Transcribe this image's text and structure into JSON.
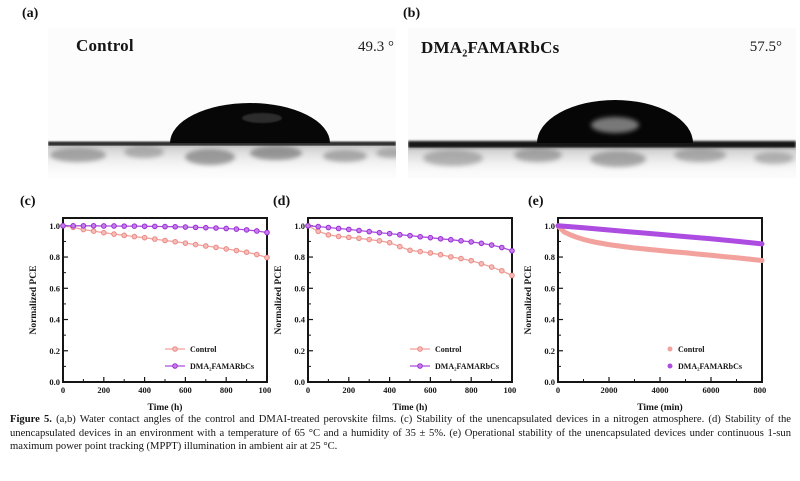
{
  "panels": {
    "a": {
      "label": "(a)",
      "title": "Control",
      "angle": "49.3 °"
    },
    "b": {
      "label": "(b)",
      "title": "DMA₂FAMARbCs",
      "angle": "57.5°"
    }
  },
  "colors": {
    "control_line": "#F2A19D",
    "control_marker_fill": "#F7BDB9",
    "control_marker_edge": "#EA8984",
    "treated_line": "#AC4CE0",
    "treated_marker_fill": "#C47EEB",
    "treated_marker_edge": "#9A2DD4",
    "axis": "#151515"
  },
  "chart_data": [
    {
      "id": "c",
      "label": "(c)",
      "type": "line",
      "title": "",
      "xlabel": "Time (h)",
      "ylabel": "Normalized PCE",
      "xlim": [
        0,
        1000
      ],
      "ylim": [
        0,
        1.05
      ],
      "xticks": [
        0,
        200,
        400,
        600,
        800,
        1000
      ],
      "yticks": [
        "0.0",
        "0.2",
        "0.4",
        "0.6",
        "0.8",
        "1.0"
      ],
      "grid": false,
      "legend_position": "lower right",
      "legend_style": "line-marker",
      "markers": true,
      "line_width": 1.3,
      "x": [
        0,
        50,
        100,
        150,
        200,
        250,
        300,
        350,
        400,
        450,
        500,
        550,
        600,
        650,
        700,
        750,
        800,
        850,
        900,
        950,
        1000
      ],
      "series": [
        {
          "name": "Control",
          "role": "control",
          "y": [
            1.0,
            0.99,
            0.976,
            0.966,
            0.956,
            0.947,
            0.939,
            0.931,
            0.924,
            0.915,
            0.906,
            0.898,
            0.889,
            0.88,
            0.871,
            0.862,
            0.852,
            0.842,
            0.831,
            0.816,
            0.797
          ]
        },
        {
          "name": "DMA₂FAMARbCs",
          "role": "treated",
          "y": [
            1.0,
            1.0,
            1.0,
            1.0,
            0.999,
            0.999,
            0.998,
            0.998,
            0.997,
            0.996,
            0.995,
            0.994,
            0.992,
            0.99,
            0.988,
            0.986,
            0.983,
            0.979,
            0.974,
            0.967,
            0.957
          ]
        }
      ]
    },
    {
      "id": "d",
      "label": "(d)",
      "type": "line",
      "title": "",
      "xlabel": "Time (h)",
      "ylabel": "Normalized PCE",
      "xlim": [
        0,
        1000
      ],
      "ylim": [
        0,
        1.05
      ],
      "xticks": [
        0,
        200,
        400,
        600,
        800,
        1000
      ],
      "yticks": [
        "0.0",
        "0.2",
        "0.4",
        "0.6",
        "0.8",
        "1.0"
      ],
      "grid": false,
      "legend_position": "lower right",
      "legend_style": "line-marker",
      "markers": true,
      "line_width": 1.3,
      "x": [
        0,
        50,
        100,
        150,
        200,
        250,
        300,
        350,
        400,
        450,
        500,
        550,
        600,
        650,
        700,
        750,
        800,
        850,
        900,
        950,
        1000
      ],
      "series": [
        {
          "name": "Control",
          "role": "control",
          "y": [
            1.0,
            0.965,
            0.942,
            0.932,
            0.926,
            0.92,
            0.912,
            0.904,
            0.892,
            0.867,
            0.843,
            0.835,
            0.826,
            0.815,
            0.801,
            0.79,
            0.777,
            0.757,
            0.736,
            0.712,
            0.682
          ]
        },
        {
          "name": "DMA₂FAMARbCs",
          "role": "treated",
          "y": [
            1.0,
            0.995,
            0.989,
            0.983,
            0.977,
            0.97,
            0.963,
            0.956,
            0.95,
            0.943,
            0.937,
            0.93,
            0.924,
            0.917,
            0.911,
            0.904,
            0.897,
            0.888,
            0.877,
            0.861,
            0.84
          ]
        }
      ]
    },
    {
      "id": "e",
      "label": "(e)",
      "type": "line",
      "title": "",
      "xlabel": "Time (min)",
      "ylabel": "Normalized PCE",
      "xlim": [
        0,
        8000
      ],
      "ylim": [
        0,
        1.05
      ],
      "xticks": [
        0,
        2000,
        4000,
        6000,
        8000
      ],
      "yticks": [
        "0.0",
        "0.2",
        "0.4",
        "0.6",
        "0.8",
        "1.0"
      ],
      "grid": false,
      "legend_position": "lower right",
      "legend_style": "dot",
      "markers": false,
      "line_width": 5,
      "series": [
        {
          "name": "Control",
          "role": "control",
          "x": [
            0,
            250,
            500,
            750,
            1000,
            1250,
            1500,
            1750,
            2000,
            2500,
            3000,
            3500,
            4000,
            4500,
            5000,
            5500,
            6000,
            6500,
            7000,
            7500,
            8000
          ],
          "y": [
            1.0,
            0.96,
            0.941,
            0.926,
            0.913,
            0.903,
            0.894,
            0.887,
            0.88,
            0.868,
            0.858,
            0.85,
            0.842,
            0.834,
            0.827,
            0.819,
            0.811,
            0.803,
            0.795,
            0.787,
            0.778
          ]
        },
        {
          "name": "DMA₂FAMARbCs",
          "role": "treated",
          "x": [
            0,
            1000,
            2000,
            3000,
            4000,
            5000,
            6000,
            7000,
            8000
          ],
          "y": [
            1.0,
            0.987,
            0.973,
            0.959,
            0.945,
            0.931,
            0.917,
            0.901,
            0.884
          ]
        }
      ]
    }
  ],
  "caption": {
    "label": "Figure 5.",
    "text": "(a,b) Water contact angles of the control and DMAI-treated perovskite films. (c) Stability of the unencapsulated devices in a nitrogen atmosphere. (d) Stability of the unencapsulated devices in an environment with a temperature of 65 °C and a humidity of 35 ± 5%. (e) Operational stability of the unencapsulated devices under continuous 1-sun maximum power point tracking (MPPT) illumination in ambient air at 25 °C."
  }
}
